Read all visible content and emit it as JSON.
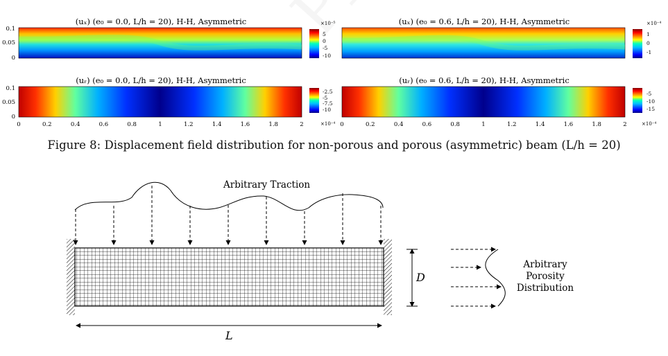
{
  "figure8": {
    "caption": "Figure 8: Displacement field distribution for non-porous and porous (asymmetric) beam (L/h = 20)",
    "panels": [
      {
        "title": "(uₓ)   (e₀ = 0.0, L/h = 20), H-H, Asymmetric",
        "cb_exp": "×10⁻⁵",
        "cb_ticks": [
          "5",
          "0",
          "-5",
          "-10"
        ]
      },
      {
        "title": "(uₓ)   (e₀ = 0.6, L/h = 20), H-H, Asymmetric",
        "cb_exp": "×10⁻⁴",
        "cb_ticks": [
          "1",
          "0",
          "-1"
        ]
      },
      {
        "title": "(uᵣ)   (e₀ = 0.0, L/h = 20), H-H, Asymmetric",
        "cb_exp": "×10⁻⁴",
        "cb_ticks": [
          "-2.5",
          "-5",
          "-7.5",
          "-10"
        ]
      },
      {
        "title": "(uᵣ)   (e₀ = 0.6, L/h = 20), H-H, Asymmetric",
        "cb_exp": "×10⁻⁴",
        "cb_ticks": [
          "-5",
          "-10",
          "-15"
        ]
      }
    ],
    "y_ticks": [
      "0.1",
      "0.05",
      "0"
    ],
    "x_ticks": [
      "0",
      "0.2",
      "0.4",
      "0.6",
      "0.8",
      "1",
      "1.2",
      "1.4",
      "1.6",
      "1.8",
      "2"
    ]
  },
  "schematic": {
    "traction_label": "Arbitrary Traction",
    "dim_D": "D",
    "dim_L": "L",
    "porosity_label": [
      "Arbitrary",
      "Porosity",
      "Distribution"
    ]
  },
  "watermark": "Preprint not peer reviewed"
}
